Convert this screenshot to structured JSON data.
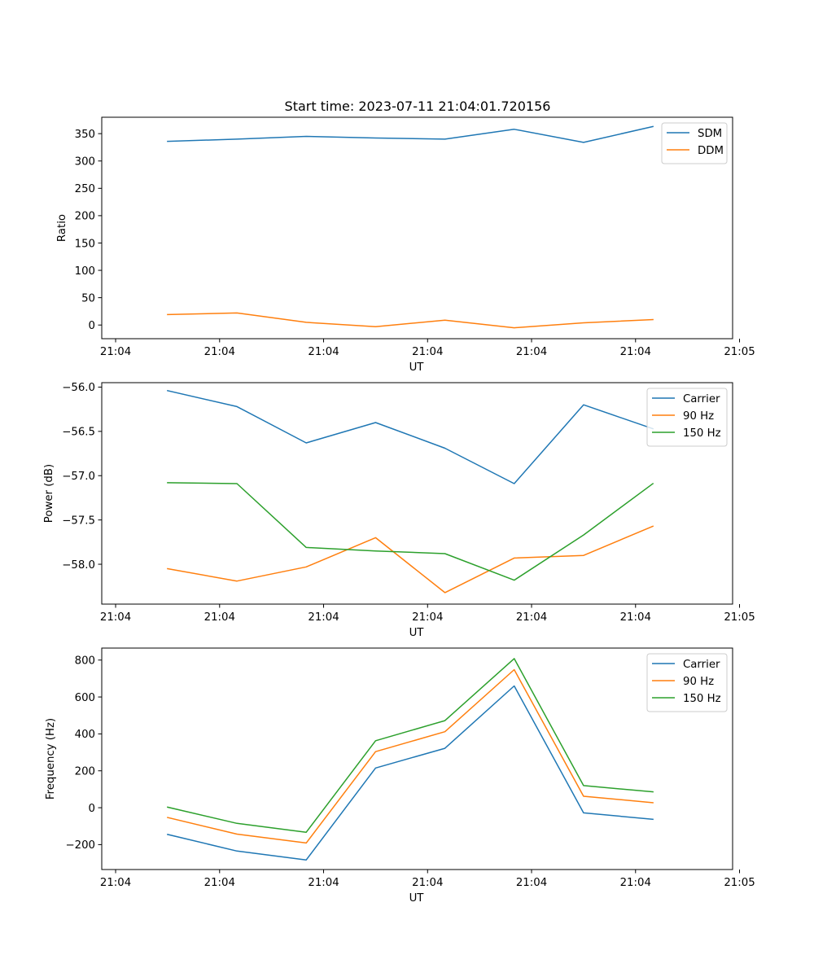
{
  "figure": {
    "title": "Start time: 2023-07-11 21:04:01.720156"
  },
  "chart_data": [
    {
      "type": "line",
      "id": "ratio",
      "xlabel": "UT",
      "ylabel": "Ratio",
      "xlim": [
        -0.2,
        8.9
      ],
      "ylim": [
        -25,
        380
      ],
      "x_ticks": [
        0,
        1.5,
        3,
        4.5,
        6,
        7.5,
        9
      ],
      "x_tick_labels": [
        "21:04",
        "21:04",
        "21:04",
        "21:04",
        "21:04",
        "21:04",
        "21:05"
      ],
      "y_ticks": [
        0,
        50,
        100,
        150,
        200,
        250,
        300,
        350
      ],
      "y_tick_labels": [
        "0",
        "50",
        "100",
        "150",
        "200",
        "250",
        "300",
        "350"
      ],
      "legend_position": "top-right",
      "x": [
        0.75,
        1.75,
        2.75,
        3.75,
        4.75,
        5.75,
        6.75,
        7.75
      ],
      "series": [
        {
          "name": "SDM",
          "color": "#1f77b4",
          "values": [
            336,
            340,
            345,
            342,
            340,
            358,
            334,
            363
          ]
        },
        {
          "name": "DDM",
          "color": "#ff7f0e",
          "values": [
            19,
            22,
            5,
            -3,
            9,
            -5,
            4,
            10
          ]
        }
      ]
    },
    {
      "type": "line",
      "id": "power",
      "xlabel": "UT",
      "ylabel": "Power (dB)",
      "xlim": [
        -0.2,
        8.9
      ],
      "ylim": [
        -58.45,
        -55.95
      ],
      "x_ticks": [
        0,
        1.5,
        3,
        4.5,
        6,
        7.5,
        9
      ],
      "x_tick_labels": [
        "21:04",
        "21:04",
        "21:04",
        "21:04",
        "21:04",
        "21:04",
        "21:05"
      ],
      "y_ticks": [
        -58.0,
        -57.5,
        -57.0,
        -56.5,
        -56.0
      ],
      "y_tick_labels": [
        "−58.0",
        "−57.5",
        "−57.0",
        "−56.5",
        "−56.0"
      ],
      "legend_position": "top-right",
      "x": [
        0.75,
        1.75,
        2.75,
        3.75,
        4.75,
        5.75,
        6.75,
        7.75
      ],
      "series": [
        {
          "name": "Carrier",
          "color": "#1f77b4",
          "values": [
            -56.04,
            -56.22,
            -56.63,
            -56.4,
            -56.69,
            -57.09,
            -56.2,
            -56.47
          ]
        },
        {
          "name": "90 Hz",
          "color": "#ff7f0e",
          "values": [
            -58.05,
            -58.19,
            -58.03,
            -57.7,
            -58.32,
            -57.93,
            -57.9,
            -57.57
          ]
        },
        {
          "name": "150 Hz",
          "color": "#2ca02c",
          "values": [
            -57.08,
            -57.09,
            -57.81,
            -57.85,
            -57.88,
            -58.18,
            -57.67,
            -57.09
          ]
        }
      ]
    },
    {
      "type": "line",
      "id": "frequency",
      "xlabel": "UT",
      "ylabel": "Frequency (Hz)",
      "xlim": [
        -0.2,
        8.9
      ],
      "ylim": [
        -335,
        865
      ],
      "x_ticks": [
        0,
        1.5,
        3,
        4.5,
        6,
        7.5,
        9
      ],
      "x_tick_labels": [
        "21:04",
        "21:04",
        "21:04",
        "21:04",
        "21:04",
        "21:04",
        "21:05"
      ],
      "y_ticks": [
        -200,
        0,
        200,
        400,
        600,
        800
      ],
      "y_tick_labels": [
        "−200",
        "0",
        "200",
        "400",
        "600",
        "800"
      ],
      "legend_position": "top-right",
      "x": [
        0.75,
        1.75,
        2.75,
        3.75,
        4.75,
        5.75,
        6.75,
        7.75
      ],
      "series": [
        {
          "name": "Carrier",
          "color": "#1f77b4",
          "values": [
            -145,
            -235,
            -283,
            215,
            322,
            660,
            -28,
            -63
          ]
        },
        {
          "name": "90 Hz",
          "color": "#ff7f0e",
          "values": [
            -53,
            -143,
            -191,
            304,
            412,
            748,
            62,
            27
          ]
        },
        {
          "name": "150 Hz",
          "color": "#2ca02c",
          "values": [
            3,
            -85,
            -133,
            363,
            472,
            808,
            120,
            86
          ]
        }
      ]
    }
  ]
}
